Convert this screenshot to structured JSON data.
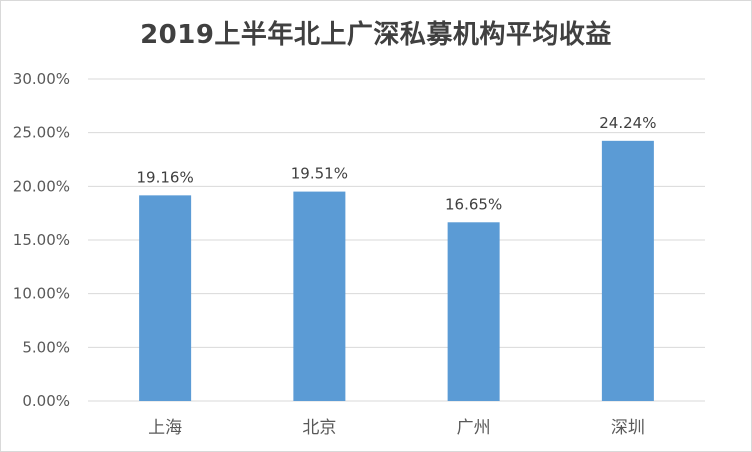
{
  "chart_data": {
    "type": "bar",
    "title": "2019上半年北上广深私募机构平均收益",
    "categories": [
      "上海",
      "北京",
      "广州",
      "深圳"
    ],
    "values": [
      19.16,
      19.51,
      16.65,
      24.24
    ],
    "data_labels": [
      "19.16%",
      "19.51%",
      "16.65%",
      "24.24%"
    ],
    "y_ticks": [
      0,
      5,
      10,
      15,
      20,
      25,
      30
    ],
    "y_tick_labels": [
      "0.00%",
      "5.00%",
      "10.00%",
      "15.00%",
      "20.00%",
      "25.00%",
      "30.00%"
    ],
    "ylim": [
      0,
      30
    ],
    "xlabel": "",
    "ylabel": "",
    "grid": true,
    "legend": "none",
    "bar_color": "#5b9bd5",
    "grid_color": "#d9d9d9"
  }
}
